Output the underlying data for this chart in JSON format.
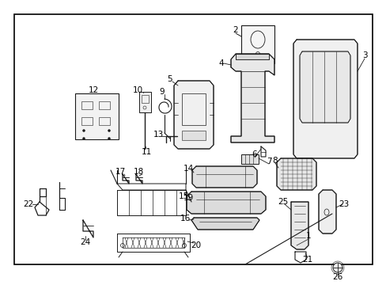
{
  "bg_color": "#ffffff",
  "border_color": "#000000",
  "line_color": "#1a1a1a",
  "lw": 0.7,
  "fig_w": 4.89,
  "fig_h": 3.6,
  "dpi": 100
}
